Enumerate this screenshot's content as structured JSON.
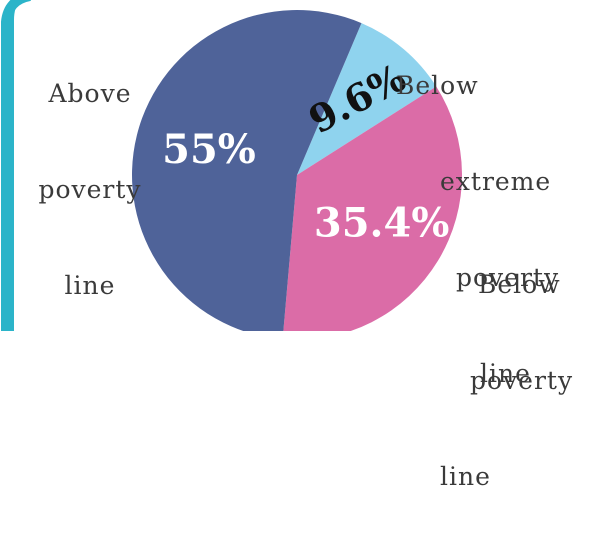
{
  "chart_data": {
    "type": "pie",
    "title": "",
    "slices": [
      {
        "label": "Above poverty line",
        "value": 55,
        "display": "55%",
        "color": "#4f6399"
      },
      {
        "label": "Below extreme poverty line",
        "value": 9.6,
        "display": "9.6%",
        "color": "#8fd3ee"
      },
      {
        "label": "Below poverty line",
        "value": 35.4,
        "display": "35.4%",
        "color": "#db6ca7"
      }
    ],
    "outer_labels": [
      {
        "line1": "Above",
        "line2": "poverty",
        "line3": "line"
      },
      {
        "line1": "Below",
        "line2": "extreme",
        "line3": "poverty",
        "line4": "line"
      },
      {
        "line1": "Below",
        "line2": "poverty",
        "line3": "line"
      }
    ],
    "legend": "none"
  },
  "colors": {
    "frame_accent": "#2bb4c9",
    "frame_background": "#ffffff",
    "label_text": "#3a3a3a"
  }
}
